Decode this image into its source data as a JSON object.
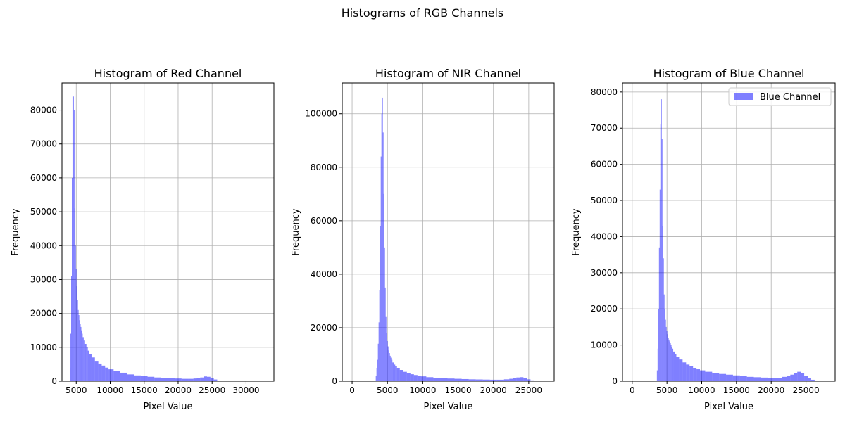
{
  "suptitle": "Histograms of RGB Channels",
  "chart_data": [
    {
      "type": "bar",
      "title": "Histogram of Red Channel",
      "xlabel": "Pixel Value",
      "ylabel": "Frequency",
      "color": "#0000ff",
      "alpha": 0.5,
      "grid": true,
      "legend": null,
      "xlim": [
        2900,
        34100
      ],
      "ylim": [
        0,
        88000
      ],
      "xticks": [
        5000,
        10000,
        15000,
        20000,
        25000,
        30000
      ],
      "yticks": [
        0,
        10000,
        20000,
        30000,
        40000,
        50000,
        60000,
        70000,
        80000
      ],
      "histogram": {
        "bin_centers": [
          4100,
          4200,
          4300,
          4400,
          4500,
          4600,
          4700,
          4800,
          4900,
          5000,
          5100,
          5200,
          5300,
          5400,
          5500,
          5600,
          5700,
          5800,
          5900,
          6000,
          6200,
          6400,
          6600,
          6800,
          7000,
          7500,
          8000,
          8500,
          9000,
          9500,
          10000,
          11000,
          12000,
          13000,
          14000,
          15000,
          16000,
          17000,
          18000,
          19000,
          20000,
          21000,
          22000,
          22500,
          23000,
          23500,
          24000,
          24500,
          25000,
          25500,
          26000,
          26500,
          27000,
          28000,
          30000,
          32000,
          33000
        ],
        "values": [
          4000,
          14000,
          31000,
          60000,
          84000,
          84000,
          80000,
          51000,
          40000,
          33000,
          28000,
          24000,
          21000,
          19500,
          18000,
          17000,
          16000,
          15000,
          14000,
          13000,
          12000,
          11000,
          10000,
          9000,
          8000,
          7000,
          6000,
          5200,
          4600,
          4000,
          3500,
          3000,
          2500,
          2000,
          1700,
          1500,
          1300,
          1100,
          1000,
          900,
          800,
          700,
          700,
          800,
          900,
          1100,
          1400,
          1300,
          900,
          500,
          200,
          100,
          60,
          40,
          30,
          20,
          10
        ]
      }
    },
    {
      "type": "bar",
      "title": "Histogram of NIR Channel",
      "xlabel": "Pixel Value",
      "ylabel": "Frequency",
      "color": "#0000ff",
      "alpha": 0.5,
      "grid": true,
      "legend": null,
      "xlim": [
        -1400,
        28600
      ],
      "ylim": [
        0,
        111500
      ],
      "xticks": [
        0,
        5000,
        10000,
        15000,
        20000,
        25000
      ],
      "yticks": [
        0,
        20000,
        40000,
        60000,
        80000,
        100000
      ],
      "histogram": {
        "bin_centers": [
          3400,
          3500,
          3600,
          3700,
          3800,
          3900,
          4000,
          4100,
          4200,
          4300,
          4400,
          4500,
          4600,
          4700,
          4800,
          4900,
          5000,
          5100,
          5200,
          5300,
          5400,
          5500,
          5600,
          5800,
          6000,
          6200,
          6500,
          7000,
          7500,
          8000,
          8500,
          9000,
          9500,
          10000,
          11000,
          12000,
          13000,
          14000,
          15000,
          16000,
          17000,
          18000,
          19000,
          20000,
          21000,
          22000,
          22500,
          23000,
          23500,
          24000,
          24500,
          25000,
          25500,
          26000
        ],
        "values": [
          2000,
          5000,
          8000,
          14000,
          22000,
          34000,
          58000,
          84000,
          100000,
          106000,
          93000,
          70000,
          50000,
          35000,
          24000,
          18000,
          15000,
          13000,
          11500,
          10500,
          9500,
          8800,
          8000,
          7000,
          6200,
          5600,
          5000,
          4200,
          3500,
          3000,
          2600,
          2300,
          2000,
          1800,
          1500,
          1300,
          1100,
          1000,
          900,
          800,
          700,
          650,
          600,
          550,
          550,
          700,
          900,
          1100,
          1400,
          1500,
          1200,
          700,
          300,
          100
        ]
      }
    },
    {
      "type": "bar",
      "title": "Histogram of Blue Channel",
      "xlabel": "Pixel Value",
      "ylabel": "Frequency",
      "color": "#0000ff",
      "alpha": 0.5,
      "grid": true,
      "legend": {
        "location": "top-right",
        "entries": [
          "Blue Channel"
        ]
      },
      "xlim": [
        -1400,
        29200
      ],
      "ylim": [
        0,
        82500
      ],
      "xticks": [
        0,
        5000,
        10000,
        15000,
        20000,
        25000
      ],
      "yticks": [
        0,
        10000,
        20000,
        30000,
        40000,
        50000,
        60000,
        70000,
        80000
      ],
      "histogram": {
        "bin_centers": [
          3600,
          3700,
          3800,
          3900,
          4000,
          4100,
          4200,
          4300,
          4400,
          4500,
          4600,
          4700,
          4800,
          4900,
          5000,
          5100,
          5200,
          5300,
          5400,
          5500,
          5600,
          5700,
          5800,
          6000,
          6200,
          6500,
          7000,
          7500,
          8000,
          8500,
          9000,
          9500,
          10000,
          11000,
          12000,
          13000,
          14000,
          15000,
          16000,
          17000,
          18000,
          19000,
          20000,
          21000,
          22000,
          22500,
          23000,
          23500,
          24000,
          24500,
          25000,
          25500,
          26000,
          26500
        ],
        "values": [
          3000,
          9000,
          20000,
          37000,
          53000,
          71000,
          78000,
          67000,
          43000,
          34000,
          24000,
          20000,
          17000,
          15000,
          14000,
          13000,
          12000,
          11500,
          11000,
          10500,
          10000,
          9500,
          9000,
          8200,
          7500,
          6800,
          6000,
          5200,
          4600,
          4100,
          3700,
          3300,
          3000,
          2600,
          2300,
          2000,
          1800,
          1600,
          1400,
          1200,
          1100,
          1000,
          950,
          950,
          1200,
          1500,
          1800,
          2200,
          2600,
          2300,
          1500,
          800,
          400,
          150
        ]
      }
    }
  ]
}
